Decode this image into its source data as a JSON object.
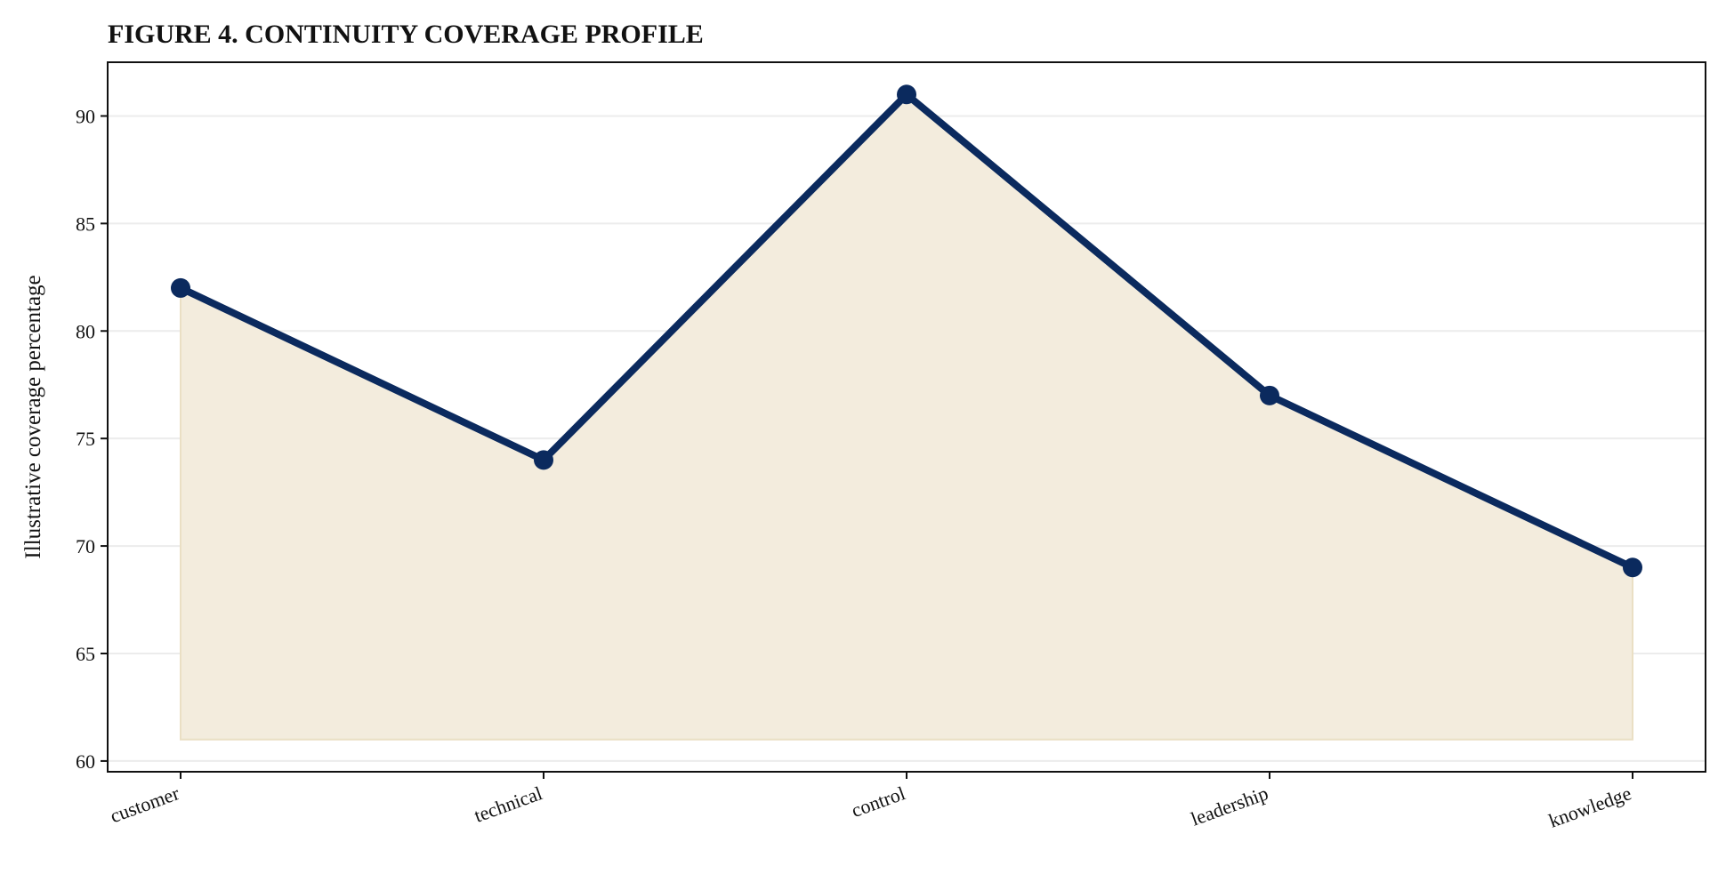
{
  "chart_data": {
    "type": "area",
    "title": "FIGURE 4. CONTINUITY COVERAGE PROFILE",
    "xlabel": "",
    "ylabel": "Illustrative coverage percentage",
    "categories": [
      "customer",
      "technical",
      "control",
      "leadership",
      "knowledge"
    ],
    "series": [
      {
        "values": [
          82,
          74,
          91,
          77,
          69
        ]
      }
    ],
    "fill_baseline": 61,
    "ylim": [
      59.5,
      92.5
    ],
    "yticks": [
      60,
      65,
      70,
      75,
      80,
      85,
      90
    ],
    "ytick_labels": [
      "60",
      "65",
      "70",
      "75",
      "80",
      "85",
      "90"
    ],
    "grid": "horizontal",
    "legend": "none",
    "colors": {
      "line": "#0b2a5e",
      "fill": "#f3ecdd",
      "fill_edge": "#eadfc4",
      "grid": "#ececec",
      "axis": "#111111"
    }
  }
}
